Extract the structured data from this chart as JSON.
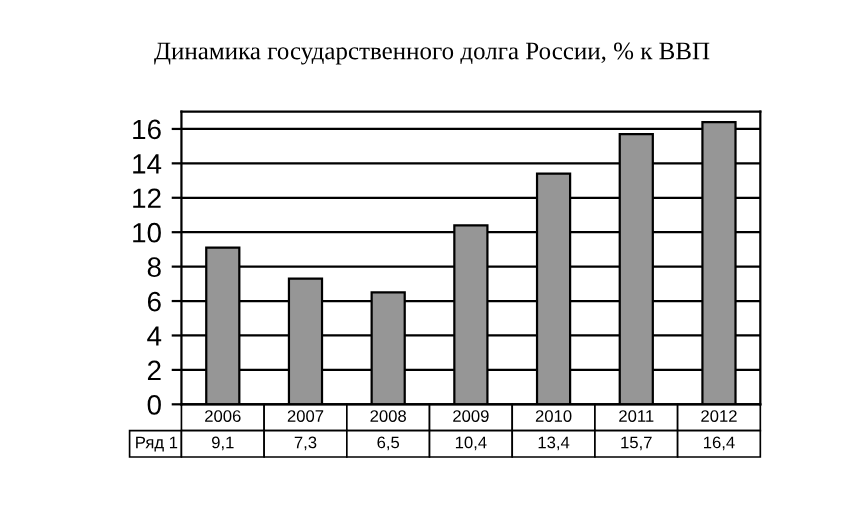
{
  "chart_data": {
    "type": "bar",
    "title": "Динамика государственного долга России, % к ВВП",
    "categories": [
      "2006",
      "2007",
      "2008",
      "2009",
      "2010",
      "2011",
      "2012"
    ],
    "series": [
      {
        "name": "Ряд 1",
        "color": "#969696",
        "values": [
          9.1,
          7.3,
          6.5,
          10.4,
          13.4,
          15.7,
          16.4
        ],
        "value_labels": [
          "9,1",
          "7,3",
          "6,5",
          "10,4",
          "13,4",
          "15,7",
          "16,4"
        ]
      }
    ],
    "ylim": [
      0,
      17
    ],
    "yticks": [
      0,
      2,
      4,
      6,
      8,
      10,
      12,
      14,
      16
    ],
    "grid": "y"
  }
}
